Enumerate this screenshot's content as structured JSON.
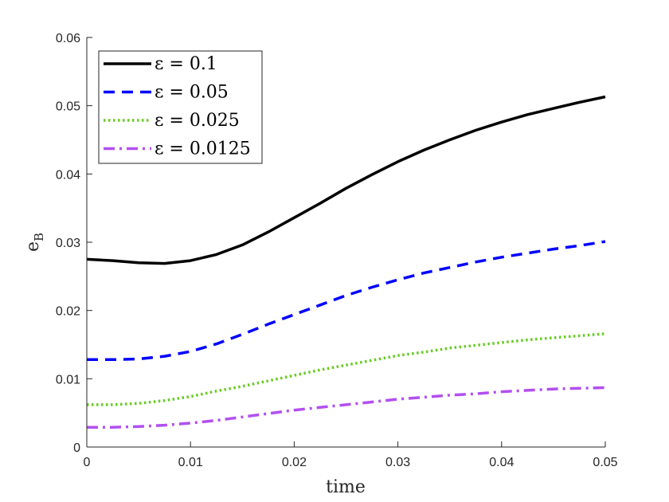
{
  "chart_data": {
    "type": "line",
    "xlabel": "time",
    "ylabel": "e",
    "ylabel_sub": "B",
    "xlim": [
      0,
      0.05
    ],
    "ylim": [
      0,
      0.06
    ],
    "xticks": [
      0,
      0.01,
      0.02,
      0.03,
      0.04,
      0.05
    ],
    "xtick_labels": [
      "0",
      "0.01",
      "0.02",
      "0.03",
      "0.04",
      "0.05"
    ],
    "yticks": [
      0,
      0.01,
      0.02,
      0.03,
      0.04,
      0.05,
      0.06
    ],
    "ytick_labels": [
      "0",
      "0.01",
      "0.02",
      "0.03",
      "0.04",
      "0.05",
      "0.06"
    ],
    "grid": false,
    "legend_position": "top-left",
    "series": [
      {
        "name": "ε = 0.1",
        "color": "#000000",
        "style": "solid",
        "x": [
          0,
          0.0025,
          0.005,
          0.0075,
          0.01,
          0.0125,
          0.015,
          0.0175,
          0.02,
          0.0225,
          0.025,
          0.0275,
          0.03,
          0.0325,
          0.035,
          0.0375,
          0.04,
          0.0425,
          0.045,
          0.0475,
          0.05
        ],
        "y": [
          0.0275,
          0.0273,
          0.027,
          0.0269,
          0.0273,
          0.0282,
          0.0296,
          0.0315,
          0.0336,
          0.0357,
          0.0379,
          0.0399,
          0.0418,
          0.0435,
          0.045,
          0.0464,
          0.0476,
          0.0487,
          0.0496,
          0.0505,
          0.0513
        ]
      },
      {
        "name": "ε = 0.05",
        "color": "#0000ff",
        "style": "dashed",
        "x": [
          0,
          0.0025,
          0.005,
          0.0075,
          0.01,
          0.0125,
          0.015,
          0.0175,
          0.02,
          0.0225,
          0.025,
          0.0275,
          0.03,
          0.0325,
          0.035,
          0.0375,
          0.04,
          0.0425,
          0.045,
          0.0475,
          0.05
        ],
        "y": [
          0.0128,
          0.0128,
          0.0129,
          0.0133,
          0.014,
          0.0151,
          0.0165,
          0.018,
          0.0194,
          0.0208,
          0.0222,
          0.0234,
          0.0245,
          0.0255,
          0.0263,
          0.0271,
          0.0278,
          0.0284,
          0.029,
          0.0295,
          0.0301
        ]
      },
      {
        "name": "ε = 0.025",
        "color": "#66cc22",
        "style": "dotted",
        "x": [
          0,
          0.0025,
          0.005,
          0.0075,
          0.01,
          0.0125,
          0.015,
          0.0175,
          0.02,
          0.0225,
          0.025,
          0.0275,
          0.03,
          0.0325,
          0.035,
          0.0375,
          0.04,
          0.0425,
          0.045,
          0.0475,
          0.05
        ],
        "y": [
          0.0062,
          0.0062,
          0.0064,
          0.0068,
          0.0074,
          0.0082,
          0.0089,
          0.0097,
          0.0105,
          0.0113,
          0.012,
          0.0127,
          0.0134,
          0.0139,
          0.0145,
          0.0149,
          0.0153,
          0.0157,
          0.016,
          0.0163,
          0.0166
        ]
      },
      {
        "name": "ε = 0.0125",
        "color": "#b34ff0",
        "style": "dashdot",
        "x": [
          0,
          0.0025,
          0.005,
          0.0075,
          0.01,
          0.0125,
          0.015,
          0.0175,
          0.02,
          0.0225,
          0.025,
          0.0275,
          0.03,
          0.0325,
          0.035,
          0.0375,
          0.04,
          0.0425,
          0.045,
          0.0475,
          0.05
        ],
        "y": [
          0.0029,
          0.0029,
          0.003,
          0.0032,
          0.0035,
          0.0039,
          0.0044,
          0.0049,
          0.0054,
          0.0058,
          0.0062,
          0.0066,
          0.007,
          0.0073,
          0.0076,
          0.0078,
          0.0081,
          0.0083,
          0.0085,
          0.0086,
          0.0087
        ]
      }
    ]
  }
}
